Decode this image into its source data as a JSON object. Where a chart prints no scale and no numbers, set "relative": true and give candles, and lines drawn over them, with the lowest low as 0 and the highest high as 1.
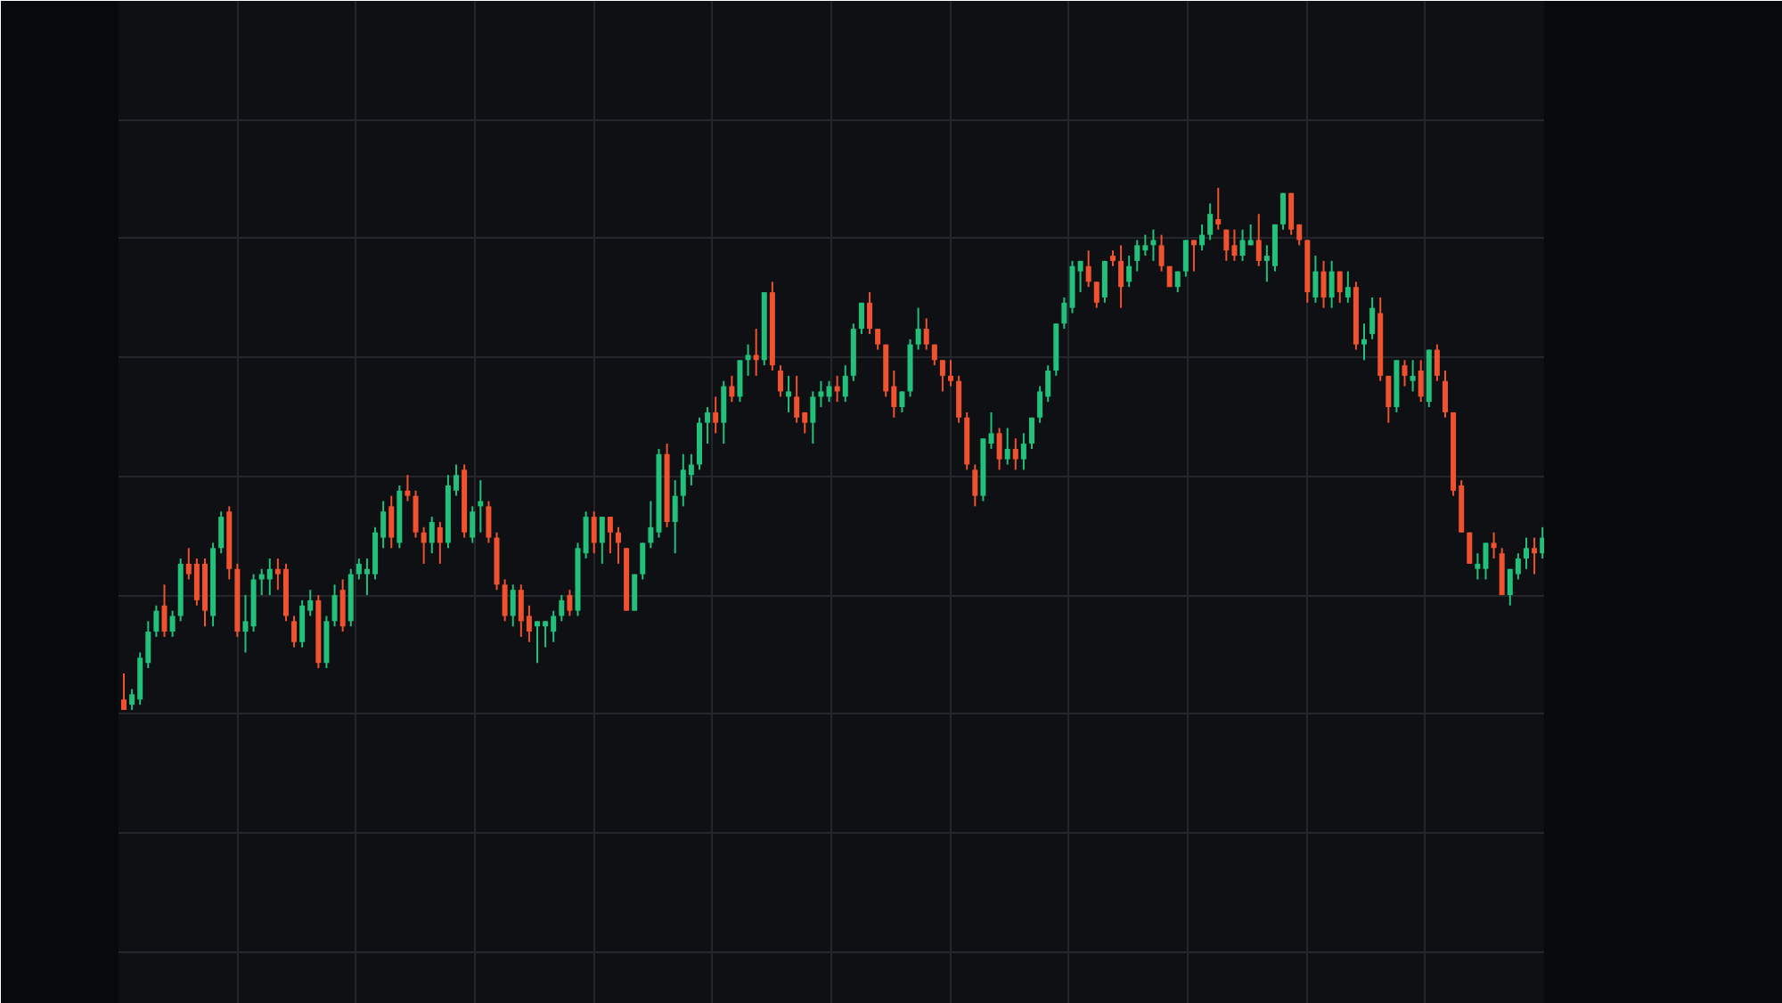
{
  "chart_data": {
    "type": "candlestick",
    "relative": true,
    "grid": true,
    "tick_labels": false,
    "categories": [
      null,
      null,
      null,
      null,
      null,
      null,
      null,
      null,
      null,
      null,
      null,
      null,
      null,
      null,
      null,
      null,
      null,
      null,
      null,
      null,
      null,
      null,
      null,
      null,
      null,
      null,
      null,
      null,
      null,
      null,
      null,
      null,
      null,
      null,
      null,
      null,
      null,
      null,
      null,
      null,
      null,
      null,
      null,
      null,
      null,
      null,
      null,
      null,
      null,
      null,
      null,
      null,
      null,
      null,
      null,
      null,
      null,
      null,
      null,
      null,
      null,
      null,
      null,
      null,
      null,
      null,
      null,
      null,
      null,
      null,
      null,
      null,
      null,
      null,
      null,
      null,
      null,
      null,
      null,
      null,
      null,
      null,
      null,
      null,
      null,
      null,
      null,
      null,
      null,
      null,
      null,
      null,
      null,
      null,
      null,
      null,
      null,
      null,
      null,
      null,
      null,
      null,
      null,
      null,
      null,
      null,
      null,
      null,
      null,
      null,
      null,
      null,
      null,
      null,
      null,
      null,
      null,
      null,
      null,
      null,
      null,
      null,
      null,
      null,
      null,
      null,
      null,
      null,
      null,
      null,
      null,
      null,
      null,
      null,
      null,
      null,
      null,
      null,
      null,
      null,
      null,
      null,
      null,
      null,
      null,
      null,
      null,
      null,
      null,
      null,
      null,
      null,
      null,
      null,
      null,
      null,
      null,
      null,
      null,
      null,
      null,
      null,
      null,
      null,
      null,
      null,
      null,
      null,
      null,
      null,
      null,
      null,
      null,
      null,
      null,
      null
    ],
    "ohlc": [
      [
        0.02,
        0.07,
        0.0,
        0.0
      ],
      [
        0.01,
        0.04,
        0.0,
        0.03
      ],
      [
        0.02,
        0.11,
        0.01,
        0.1
      ],
      [
        0.09,
        0.17,
        0.08,
        0.15
      ],
      [
        0.15,
        0.2,
        0.14,
        0.19
      ],
      [
        0.2,
        0.24,
        0.14,
        0.15
      ],
      [
        0.15,
        0.19,
        0.14,
        0.18
      ],
      [
        0.18,
        0.29,
        0.17,
        0.28
      ],
      [
        0.28,
        0.31,
        0.25,
        0.26
      ],
      [
        0.28,
        0.29,
        0.2,
        0.21
      ],
      [
        0.28,
        0.29,
        0.16,
        0.19
      ],
      [
        0.18,
        0.32,
        0.16,
        0.31
      ],
      [
        0.31,
        0.38,
        0.3,
        0.37
      ],
      [
        0.38,
        0.39,
        0.25,
        0.27
      ],
      [
        0.27,
        0.28,
        0.14,
        0.15
      ],
      [
        0.15,
        0.22,
        0.11,
        0.17
      ],
      [
        0.16,
        0.26,
        0.15,
        0.25
      ],
      [
        0.25,
        0.27,
        0.22,
        0.26
      ],
      [
        0.25,
        0.29,
        0.22,
        0.27
      ],
      [
        0.27,
        0.29,
        0.23,
        0.26
      ],
      [
        0.27,
        0.28,
        0.17,
        0.18
      ],
      [
        0.17,
        0.18,
        0.12,
        0.13
      ],
      [
        0.13,
        0.21,
        0.12,
        0.2
      ],
      [
        0.19,
        0.23,
        0.18,
        0.21
      ],
      [
        0.21,
        0.22,
        0.08,
        0.09
      ],
      [
        0.09,
        0.18,
        0.08,
        0.17
      ],
      [
        0.17,
        0.24,
        0.16,
        0.22
      ],
      [
        0.23,
        0.25,
        0.15,
        0.16
      ],
      [
        0.17,
        0.27,
        0.16,
        0.26
      ],
      [
        0.26,
        0.29,
        0.25,
        0.28
      ],
      [
        0.26,
        0.29,
        0.22,
        0.27
      ],
      [
        0.26,
        0.35,
        0.25,
        0.34
      ],
      [
        0.33,
        0.4,
        0.31,
        0.38
      ],
      [
        0.39,
        0.41,
        0.31,
        0.33
      ],
      [
        0.32,
        0.43,
        0.31,
        0.42
      ],
      [
        0.42,
        0.45,
        0.4,
        0.41
      ],
      [
        0.41,
        0.42,
        0.33,
        0.34
      ],
      [
        0.34,
        0.35,
        0.28,
        0.32
      ],
      [
        0.32,
        0.37,
        0.3,
        0.36
      ],
      [
        0.35,
        0.36,
        0.28,
        0.32
      ],
      [
        0.32,
        0.45,
        0.31,
        0.43
      ],
      [
        0.42,
        0.47,
        0.41,
        0.45
      ],
      [
        0.46,
        0.47,
        0.33,
        0.34
      ],
      [
        0.33,
        0.39,
        0.32,
        0.38
      ],
      [
        0.39,
        0.44,
        0.34,
        0.4
      ],
      [
        0.39,
        0.4,
        0.32,
        0.33
      ],
      [
        0.33,
        0.34,
        0.23,
        0.24
      ],
      [
        0.24,
        0.25,
        0.17,
        0.18
      ],
      [
        0.18,
        0.24,
        0.16,
        0.23
      ],
      [
        0.23,
        0.24,
        0.14,
        0.17
      ],
      [
        0.18,
        0.2,
        0.13,
        0.15
      ],
      [
        0.16,
        0.17,
        0.09,
        0.17
      ],
      [
        0.16,
        0.17,
        0.12,
        0.17
      ],
      [
        0.15,
        0.19,
        0.13,
        0.18
      ],
      [
        0.18,
        0.22,
        0.17,
        0.21
      ],
      [
        0.22,
        0.23,
        0.18,
        0.19
      ],
      [
        0.19,
        0.32,
        0.18,
        0.31
      ],
      [
        0.3,
        0.38,
        0.29,
        0.37
      ],
      [
        0.37,
        0.38,
        0.3,
        0.32
      ],
      [
        0.32,
        0.37,
        0.28,
        0.37
      ],
      [
        0.37,
        0.37,
        0.3,
        0.34
      ],
      [
        0.34,
        0.35,
        0.28,
        0.32
      ],
      [
        0.31,
        0.31,
        0.19,
        0.19
      ],
      [
        0.19,
        0.26,
        0.19,
        0.26
      ],
      [
        0.26,
        0.32,
        0.25,
        0.32
      ],
      [
        0.32,
        0.4,
        0.31,
        0.35
      ],
      [
        0.34,
        0.5,
        0.33,
        0.49
      ],
      [
        0.49,
        0.51,
        0.35,
        0.36
      ],
      [
        0.36,
        0.44,
        0.3,
        0.41
      ],
      [
        0.41,
        0.49,
        0.39,
        0.46
      ],
      [
        0.45,
        0.49,
        0.43,
        0.47
      ],
      [
        0.47,
        0.56,
        0.46,
        0.55
      ],
      [
        0.55,
        0.58,
        0.51,
        0.57
      ],
      [
        0.57,
        0.6,
        0.53,
        0.55
      ],
      [
        0.55,
        0.63,
        0.51,
        0.62
      ],
      [
        0.62,
        0.64,
        0.59,
        0.6
      ],
      [
        0.6,
        0.67,
        0.59,
        0.67
      ],
      [
        0.67,
        0.7,
        0.64,
        0.68
      ],
      [
        0.68,
        0.73,
        0.64,
        0.67
      ],
      [
        0.67,
        0.8,
        0.66,
        0.8
      ],
      [
        0.8,
        0.82,
        0.65,
        0.66
      ],
      [
        0.65,
        0.66,
        0.6,
        0.61
      ],
      [
        0.6,
        0.64,
        0.57,
        0.61
      ],
      [
        0.6,
        0.64,
        0.55,
        0.56
      ],
      [
        0.57,
        0.57,
        0.53,
        0.55
      ],
      [
        0.55,
        0.61,
        0.51,
        0.6
      ],
      [
        0.6,
        0.63,
        0.58,
        0.61
      ],
      [
        0.6,
        0.63,
        0.59,
        0.62
      ],
      [
        0.62,
        0.64,
        0.59,
        0.61
      ],
      [
        0.6,
        0.66,
        0.59,
        0.64
      ],
      [
        0.64,
        0.74,
        0.63,
        0.73
      ],
      [
        0.73,
        0.78,
        0.72,
        0.78
      ],
      [
        0.78,
        0.8,
        0.72,
        0.73
      ],
      [
        0.73,
        0.73,
        0.69,
        0.7
      ],
      [
        0.7,
        0.7,
        0.6,
        0.61
      ],
      [
        0.62,
        0.65,
        0.56,
        0.58
      ],
      [
        0.58,
        0.61,
        0.57,
        0.61
      ],
      [
        0.61,
        0.71,
        0.6,
        0.7
      ],
      [
        0.7,
        0.77,
        0.69,
        0.73
      ],
      [
        0.73,
        0.75,
        0.69,
        0.7
      ],
      [
        0.7,
        0.7,
        0.66,
        0.67
      ],
      [
        0.67,
        0.67,
        0.61,
        0.64
      ],
      [
        0.64,
        0.67,
        0.62,
        0.63
      ],
      [
        0.63,
        0.64,
        0.55,
        0.56
      ],
      [
        0.56,
        0.57,
        0.46,
        0.47
      ],
      [
        0.46,
        0.47,
        0.39,
        0.41
      ],
      [
        0.41,
        0.52,
        0.4,
        0.52
      ],
      [
        0.51,
        0.57,
        0.5,
        0.53
      ],
      [
        0.53,
        0.54,
        0.46,
        0.48
      ],
      [
        0.48,
        0.54,
        0.47,
        0.5
      ],
      [
        0.5,
        0.52,
        0.46,
        0.48
      ],
      [
        0.48,
        0.53,
        0.46,
        0.51
      ],
      [
        0.51,
        0.56,
        0.5,
        0.56
      ],
      [
        0.56,
        0.62,
        0.55,
        0.61
      ],
      [
        0.6,
        0.66,
        0.59,
        0.65
      ],
      [
        0.65,
        0.74,
        0.64,
        0.74
      ],
      [
        0.74,
        0.79,
        0.73,
        0.78
      ],
      [
        0.77,
        0.86,
        0.76,
        0.85
      ],
      [
        0.84,
        0.86,
        0.8,
        0.86
      ],
      [
        0.85,
        0.88,
        0.81,
        0.82
      ],
      [
        0.82,
        0.82,
        0.77,
        0.78
      ],
      [
        0.79,
        0.86,
        0.78,
        0.86
      ],
      [
        0.87,
        0.88,
        0.85,
        0.86
      ],
      [
        0.86,
        0.89,
        0.77,
        0.81
      ],
      [
        0.82,
        0.87,
        0.81,
        0.85
      ],
      [
        0.86,
        0.9,
        0.84,
        0.89
      ],
      [
        0.88,
        0.91,
        0.87,
        0.89
      ],
      [
        0.89,
        0.92,
        0.86,
        0.9
      ],
      [
        0.89,
        0.91,
        0.84,
        0.85
      ],
      [
        0.85,
        0.85,
        0.81,
        0.81
      ],
      [
        0.81,
        0.84,
        0.8,
        0.84
      ],
      [
        0.84,
        0.9,
        0.83,
        0.9
      ],
      [
        0.9,
        0.9,
        0.84,
        0.89
      ],
      [
        0.89,
        0.93,
        0.88,
        0.91
      ],
      [
        0.91,
        0.97,
        0.9,
        0.95
      ],
      [
        0.94,
        1.0,
        0.92,
        0.93
      ],
      [
        0.92,
        0.92,
        0.86,
        0.88
      ],
      [
        0.89,
        0.92,
        0.86,
        0.87
      ],
      [
        0.87,
        0.92,
        0.86,
        0.9
      ],
      [
        0.89,
        0.93,
        0.89,
        0.9
      ],
      [
        0.9,
        0.95,
        0.85,
        0.86
      ],
      [
        0.86,
        0.89,
        0.82,
        0.87
      ],
      [
        0.85,
        0.93,
        0.84,
        0.93
      ],
      [
        0.93,
        0.99,
        0.92,
        0.99
      ],
      [
        0.99,
        0.99,
        0.91,
        0.92
      ],
      [
        0.93,
        0.93,
        0.89,
        0.9
      ],
      [
        0.9,
        0.9,
        0.78,
        0.8
      ],
      [
        0.79,
        0.87,
        0.78,
        0.84
      ],
      [
        0.84,
        0.86,
        0.77,
        0.79
      ],
      [
        0.79,
        0.86,
        0.77,
        0.84
      ],
      [
        0.84,
        0.84,
        0.78,
        0.8
      ],
      [
        0.79,
        0.84,
        0.78,
        0.81
      ],
      [
        0.81,
        0.82,
        0.69,
        0.7
      ],
      [
        0.7,
        0.74,
        0.67,
        0.71
      ],
      [
        0.72,
        0.79,
        0.71,
        0.77
      ],
      [
        0.76,
        0.79,
        0.63,
        0.64
      ],
      [
        0.64,
        0.64,
        0.55,
        0.58
      ],
      [
        0.58,
        0.67,
        0.57,
        0.67
      ],
      [
        0.66,
        0.67,
        0.62,
        0.64
      ],
      [
        0.63,
        0.67,
        0.61,
        0.64
      ],
      [
        0.65,
        0.67,
        0.59,
        0.6
      ],
      [
        0.59,
        0.69,
        0.58,
        0.69
      ],
      [
        0.69,
        0.7,
        0.63,
        0.64
      ],
      [
        0.63,
        0.65,
        0.56,
        0.57
      ],
      [
        0.57,
        0.57,
        0.41,
        0.42
      ],
      [
        0.43,
        0.44,
        0.34,
        0.34
      ],
      [
        0.34,
        0.34,
        0.28,
        0.28
      ],
      [
        0.27,
        0.3,
        0.25,
        0.28
      ],
      [
        0.27,
        0.32,
        0.25,
        0.32
      ],
      [
        0.32,
        0.34,
        0.29,
        0.31
      ],
      [
        0.3,
        0.31,
        0.22,
        0.22
      ],
      [
        0.22,
        0.27,
        0.2,
        0.27
      ],
      [
        0.26,
        0.3,
        0.25,
        0.29
      ],
      [
        0.29,
        0.33,
        0.27,
        0.31
      ],
      [
        0.31,
        0.33,
        0.26,
        0.3
      ],
      [
        0.3,
        0.35,
        0.29,
        0.33
      ]
    ]
  }
}
